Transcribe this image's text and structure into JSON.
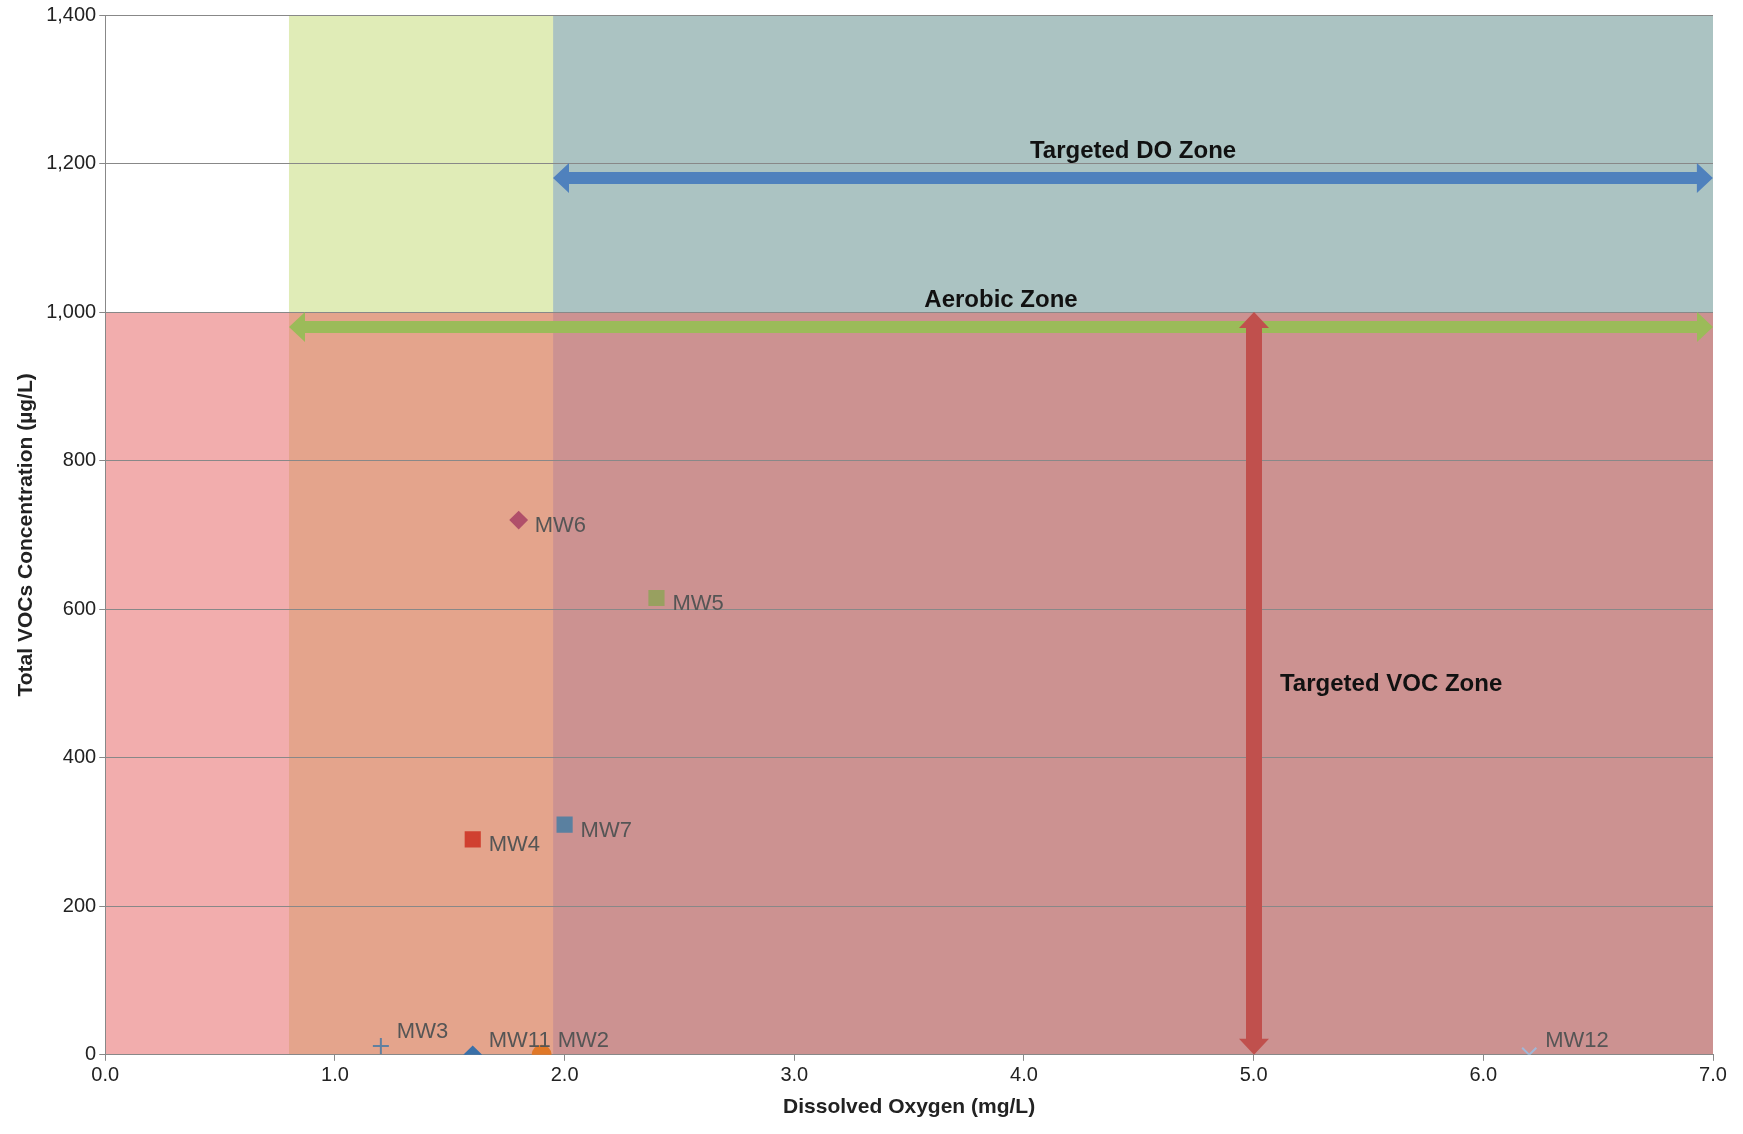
{
  "chart_data": {
    "type": "scatter",
    "xlabel": "Dissolved Oxygen (mg/L)",
    "ylabel": "Total VOCs Concentration (µg/L)",
    "xlim": [
      0,
      7
    ],
    "xticks": [
      {
        "value": 0,
        "label": "0.0"
      },
      {
        "value": 1,
        "label": "1.0"
      },
      {
        "value": 2,
        "label": "2.0"
      },
      {
        "value": 3,
        "label": "3.0"
      },
      {
        "value": 4,
        "label": "4.0"
      },
      {
        "value": 5,
        "label": "5.0"
      },
      {
        "value": 6,
        "label": "6.0"
      },
      {
        "value": 7,
        "label": "7.0"
      }
    ],
    "ylim": [
      0,
      1400
    ],
    "yticks": [
      0,
      200,
      400,
      600,
      800,
      {
        "value": 1000,
        "label": "1,000"
      },
      {
        "value": 1200,
        "label": "1,200"
      },
      {
        "value": 1400,
        "label": "1,400"
      }
    ],
    "grid": "y",
    "bands": [
      {
        "axis": "x",
        "from": 0.8,
        "to": 7,
        "label": "Aerobic Zone",
        "color": "#c6dc7c"
      },
      {
        "axis": "x",
        "from": 1.95,
        "to": 7,
        "label": "Targeted DO Zone",
        "color": "#7fa2cc"
      },
      {
        "axis": "y",
        "from": 0,
        "to": 1000,
        "label": "Targeted VOC Zone",
        "color": "#e86a6a"
      }
    ],
    "series": [
      {
        "name": "MW6",
        "color": "#b0506a",
        "marker": "diamond",
        "x": [
          1.8
        ],
        "values": [
          720
        ]
      },
      {
        "name": "MW5",
        "color": "#98a060",
        "marker": "square",
        "x": [
          2.4
        ],
        "values": [
          615
        ]
      },
      {
        "name": "MW7",
        "color": "#5a80a0",
        "marker": "square",
        "x": [
          2.0
        ],
        "values": [
          310
        ]
      },
      {
        "name": "MW4",
        "color": "#d04030",
        "marker": "square",
        "x": [
          1.6
        ],
        "values": [
          290
        ]
      },
      {
        "name": "MW3",
        "color": "#6080a0",
        "marker": "cross",
        "x": [
          1.2
        ],
        "values": [
          12
        ]
      },
      {
        "name": "MW11",
        "color": "#3a70a8",
        "marker": "diamond",
        "x": [
          1.6
        ],
        "values": [
          0
        ]
      },
      {
        "name": "MW2",
        "color": "#e07828",
        "marker": "circle",
        "x": [
          1.9
        ],
        "values": [
          0
        ]
      },
      {
        "name": "MW12",
        "color": "#a0b8d8",
        "marker": "x",
        "x": [
          6.2
        ],
        "values": [
          0
        ]
      }
    ]
  }
}
